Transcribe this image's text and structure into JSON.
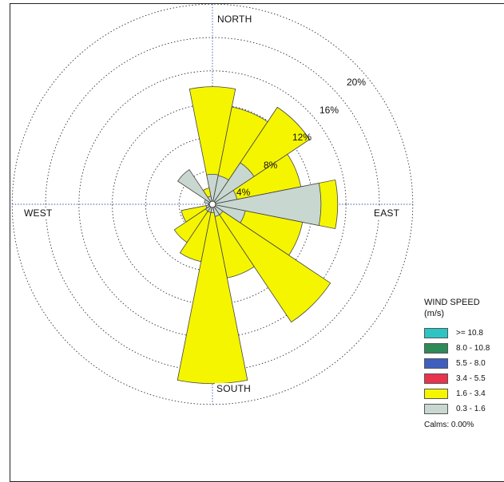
{
  "chart_data": {
    "type": "wind-rose",
    "direction_labels": {
      "north": "NORTH",
      "south": "SOUTH",
      "east": "EAST",
      "west": "WEST"
    },
    "rings": [
      "4%",
      "8%",
      "12%",
      "16%",
      "20%"
    ],
    "ring_values": [
      4,
      8,
      12,
      16,
      20
    ],
    "legend": {
      "title": "WIND SPEED",
      "unit": "(m/s)",
      "classes": [
        {
          "label": ">= 10.8",
          "color": "#2ec4c4"
        },
        {
          "label": "8.0 - 10.8",
          "color": "#2e8b57"
        },
        {
          "label": "5.5 - 8.0",
          "color": "#3f5fbf"
        },
        {
          "label": "3.4 - 5.5",
          "color": "#e8344c"
        },
        {
          "label": "1.6 - 3.4",
          "color": "#f5f500"
        },
        {
          "label": "0.3 - 1.6",
          "color": "#c8d8d0"
        }
      ],
      "calms": "Calms: 0.00%"
    },
    "directions_deg": [
      0,
      22.5,
      45,
      67.5,
      90,
      112.5,
      135,
      157.5,
      180,
      202.5,
      225,
      247.5,
      270,
      292.5,
      315,
      337.5
    ],
    "series": [
      {
        "name": "0.3 - 1.6",
        "color": "#c8d8d0",
        "values": [
          3.6,
          3.5,
          6.0,
          3.0,
          13.0,
          4.0,
          1.5,
          1.5,
          1.0,
          1.0,
          1.0,
          0.8,
          0.5,
          1.0,
          5.0,
          1.0
        ]
      },
      {
        "name": "1.6 - 3.4",
        "color": "#f5f500",
        "values": [
          10.5,
          8.4,
          8.0,
          7.8,
          2.0,
          7.0,
          15.5,
          7.5,
          20.5,
          6.0,
          4.5,
          3.0,
          0.0,
          0.0,
          0.0,
          1.0
        ]
      }
    ]
  }
}
